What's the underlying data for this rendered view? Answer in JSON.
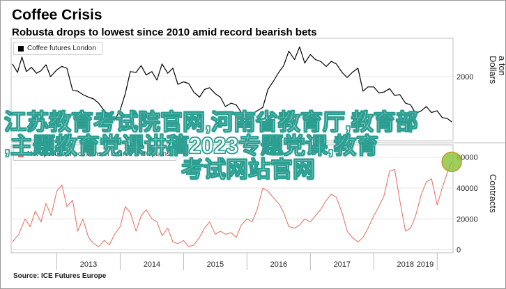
{
  "header": {
    "title": "Coffee Crisis",
    "subtitle": "Robusta drops to lowest since 2010 amid record bearish bets"
  },
  "overlay": {
    "line1": "江苏教育考试院官网,河南省教育厅,教育部",
    "line2": ",主题教育党课讲稿2023专题党课,教育",
    "line3": "考试网站官网"
  },
  "footer": {
    "source": "Source: ICE Futures Europe"
  },
  "chart_data": [
    {
      "type": "line",
      "legend": "Coffee futures London",
      "ylabel": "Dollars",
      "ylabel2": "a ton",
      "yticks": [
        2000
      ],
      "ylim": [
        1250,
        2450
      ],
      "color": "#000000",
      "x_ticks": [
        "2013",
        "2014",
        "2015",
        "2016",
        "2017",
        "2018",
        "2019"
      ],
      "series": [
        {
          "x": [
            2012.3,
            2012.38,
            2012.45,
            2012.52,
            2012.6,
            2012.68,
            2012.75,
            2012.83,
            2012.9,
            2013.0,
            2013.08,
            2013.16,
            2013.25,
            2013.33,
            2013.41,
            2013.5,
            2013.58,
            2013.66,
            2013.75,
            2013.83,
            2013.91,
            2014.0,
            2014.08,
            2014.16,
            2014.25,
            2014.33,
            2014.41,
            2014.5,
            2014.58,
            2014.66,
            2014.75,
            2014.83,
            2014.91,
            2015.0,
            2015.08,
            2015.16,
            2015.25,
            2015.33,
            2015.41,
            2015.5,
            2015.58,
            2015.66,
            2015.75,
            2015.83,
            2015.91,
            2016.0,
            2016.08,
            2016.16,
            2016.25,
            2016.33,
            2016.41,
            2016.5,
            2016.58,
            2016.66,
            2016.75,
            2016.83,
            2016.91,
            2017.0,
            2017.08,
            2017.16,
            2017.25,
            2017.33,
            2017.41,
            2017.5,
            2017.58,
            2017.66,
            2017.75,
            2017.83,
            2017.91,
            2018.0,
            2018.08,
            2018.16,
            2018.25,
            2018.33,
            2018.41,
            2018.5,
            2018.58,
            2018.66,
            2018.75,
            2018.83,
            2018.91,
            2019.0,
            2019.08,
            2019.16,
            2019.23
          ],
          "values": [
            2150,
            2050,
            2230,
            2060,
            2110,
            2040,
            2070,
            2140,
            2000,
            2080,
            2120,
            2100,
            1840,
            1830,
            1790,
            1760,
            1740,
            1690,
            1600,
            1540,
            1490,
            1610,
            1800,
            2060,
            2050,
            2130,
            2020,
            2060,
            1960,
            2150,
            2040,
            2100,
            1910,
            1940,
            1920,
            1820,
            1760,
            1850,
            1870,
            1800,
            1760,
            1650,
            1690,
            1670,
            1580,
            1550,
            1560,
            1600,
            1640,
            1850,
            1940,
            2050,
            2130,
            2300,
            2200,
            2350,
            2160,
            2260,
            2200,
            2180,
            2120,
            2180,
            2150,
            2050,
            1990,
            2050,
            2100,
            1830,
            1880,
            1880,
            1810,
            1820,
            1860,
            1780,
            1790,
            1690,
            1670,
            1570,
            1600,
            1650,
            1580,
            1600,
            1520,
            1510,
            1470
          ]
        }
      ]
    },
    {
      "type": "line",
      "legend": "Net speculator positions in futures and options",
      "ylabel": "Contracts",
      "yticks": [
        0,
        20000,
        40000,
        60000
      ],
      "ylim": [
        -2000,
        68000
      ],
      "color": "#e8766b",
      "x_ticks": [
        "2013",
        "2014",
        "2015",
        "2016",
        "2017",
        "2018",
        "2019"
      ],
      "series": [
        {
          "x": [
            2012.3,
            2012.4,
            2012.5,
            2012.58,
            2012.66,
            2012.75,
            2012.83,
            2012.91,
            2013.0,
            2013.08,
            2013.16,
            2013.25,
            2013.33,
            2013.41,
            2013.5,
            2013.58,
            2013.66,
            2013.75,
            2013.83,
            2013.91,
            2014.0,
            2014.08,
            2014.16,
            2014.25,
            2014.33,
            2014.41,
            2014.5,
            2014.58,
            2014.66,
            2014.75,
            2014.83,
            2014.91,
            2015.0,
            2015.08,
            2015.16,
            2015.25,
            2015.33,
            2015.41,
            2015.5,
            2015.58,
            2015.66,
            2015.75,
            2015.83,
            2015.91,
            2016.0,
            2016.08,
            2016.16,
            2016.25,
            2016.33,
            2016.41,
            2016.5,
            2016.58,
            2016.66,
            2016.75,
            2016.83,
            2016.91,
            2017.0,
            2017.08,
            2017.16,
            2017.25,
            2017.33,
            2017.41,
            2017.5,
            2017.58,
            2017.66,
            2017.75,
            2017.83,
            2017.91,
            2018.0,
            2018.08,
            2018.16,
            2018.25,
            2018.33,
            2018.41,
            2018.5,
            2018.58,
            2018.66,
            2018.75,
            2018.83,
            2018.91,
            2019.0,
            2019.08,
            2019.16,
            2019.23
          ],
          "values": [
            5000,
            10000,
            20000,
            15000,
            25000,
            18000,
            30000,
            22000,
            38000,
            42000,
            28000,
            32000,
            12000,
            20000,
            8000,
            4000,
            2000,
            6000,
            3000,
            10000,
            15000,
            28000,
            24000,
            12000,
            22000,
            26000,
            20000,
            18000,
            9000,
            14000,
            5000,
            4000,
            6000,
            2000,
            3000,
            8000,
            14000,
            18000,
            10000,
            12000,
            10000,
            11000,
            8000,
            16000,
            20000,
            18000,
            26000,
            40000,
            38000,
            34000,
            30000,
            24000,
            15000,
            14000,
            16000,
            20000,
            18000,
            22000,
            26000,
            32000,
            36000,
            34000,
            24000,
            12000,
            8000,
            5000,
            8000,
            14000,
            22000,
            28000,
            35000,
            51000,
            52000,
            32000,
            12000,
            14000,
            22000,
            36000,
            44000,
            46000,
            29000,
            40000,
            50000,
            57000
          ]
        }
      ]
    }
  ]
}
